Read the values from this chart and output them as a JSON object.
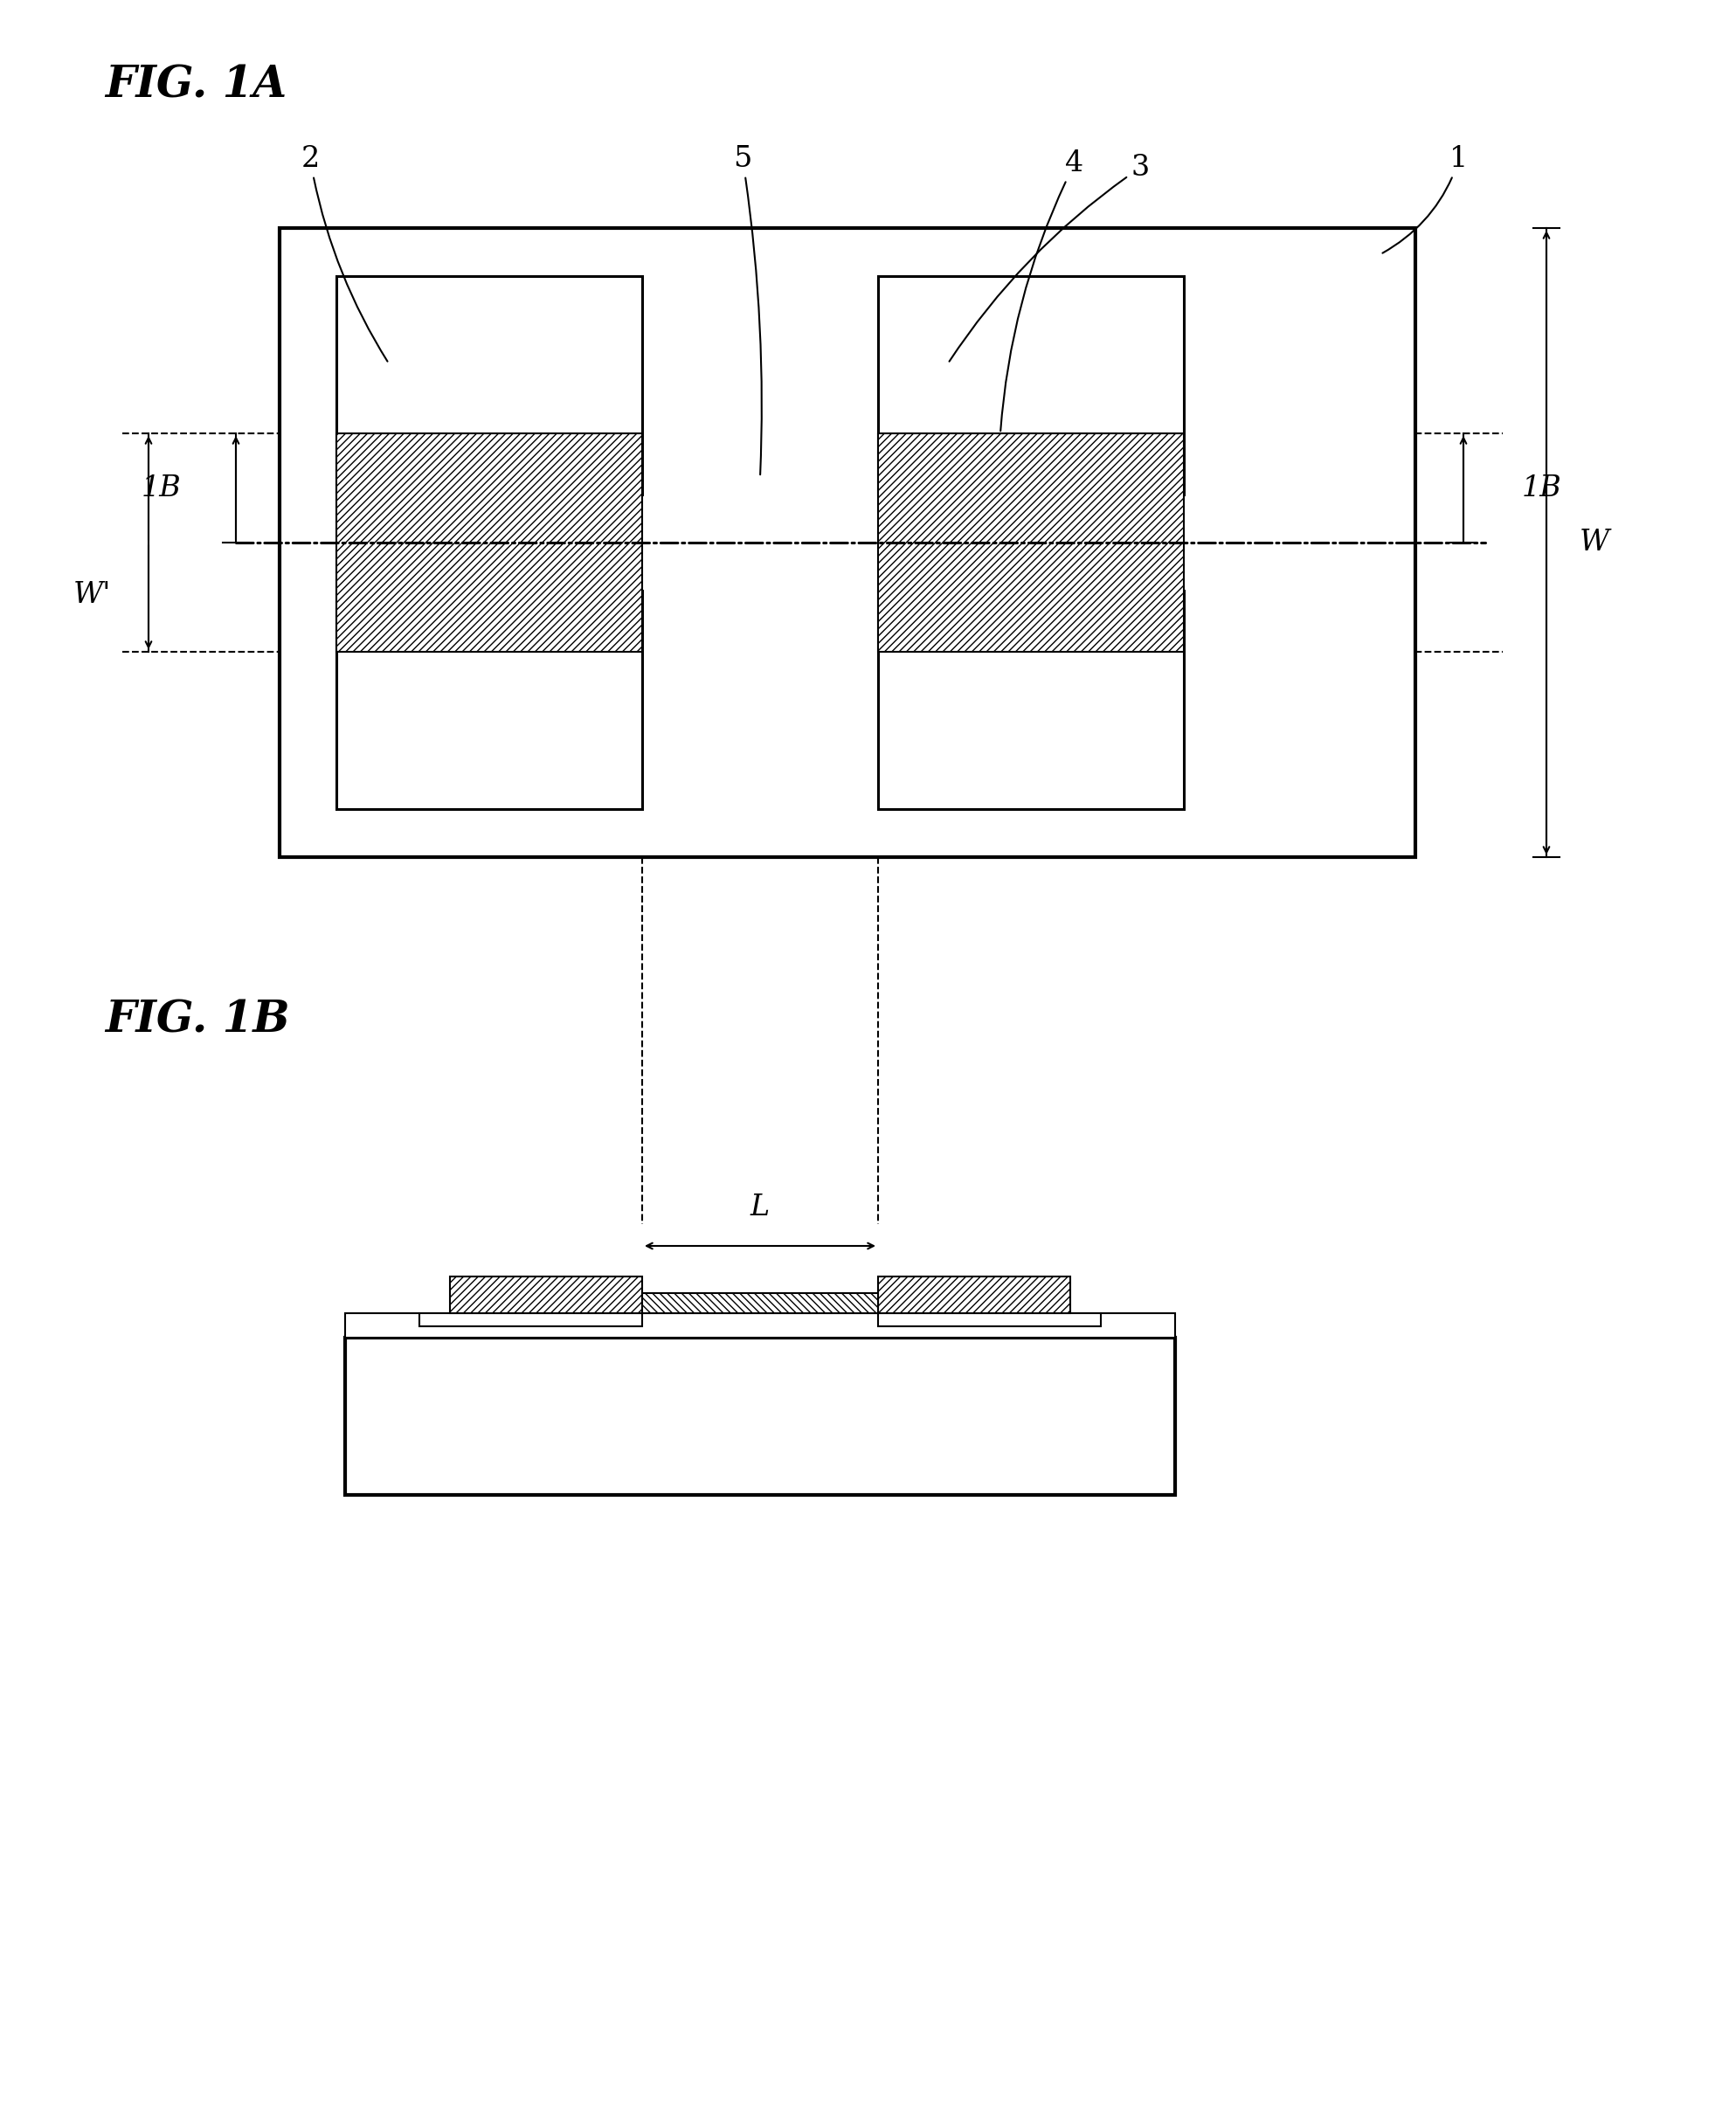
{
  "fig_title_1A": "FIG. 1A",
  "fig_title_1B": "FIG. 1B",
  "bg_color": "#ffffff",
  "line_color": "#000000",
  "label_1": "1",
  "label_2": "2",
  "label_3": "3",
  "label_4": "4",
  "label_5": "5",
  "label_W": "W",
  "label_Wp": "W'",
  "label_1B_left": "1B",
  "label_1B_right": "1B",
  "label_L": "L",
  "font_size_title": 36,
  "font_size_label": 24,
  "lw_thick": 3.0,
  "lw_med": 2.2,
  "lw_thin": 1.5
}
